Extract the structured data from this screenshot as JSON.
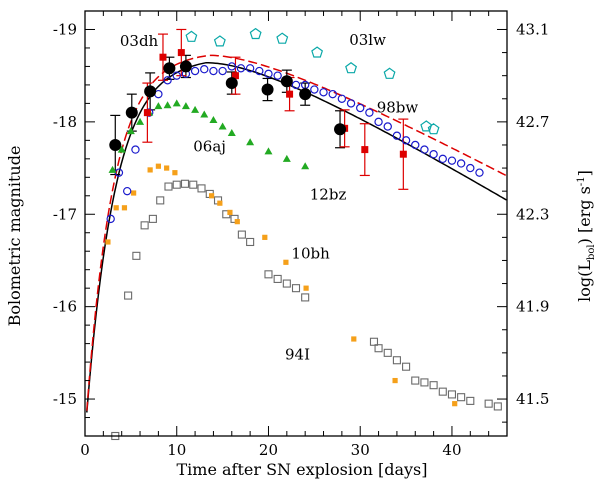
{
  "chart_data": {
    "type": "scatter",
    "xlabel": "Time after SN explosion [days]",
    "ylabel": "Bolometric magnitude",
    "ylabel_right": "log(L",
    "ylabel_right_sub": "bol",
    "ylabel_right_tail": ") [erg s",
    "ylabel_right_sup": "-1",
    "ylabel_right_end": "]",
    "xlim": [
      0,
      46
    ],
    "ylim": [
      -14.6,
      -19.2
    ],
    "x_ticks": [
      "0",
      "10",
      "20",
      "30",
      "40"
    ],
    "x_tick_values": [
      0,
      10,
      20,
      30,
      40
    ],
    "y_ticks": [
      "-15",
      "-16",
      "-17",
      "-18",
      "-19"
    ],
    "y_tick_values": [
      -15,
      -16,
      -17,
      -18,
      -19
    ],
    "y_right_ticks": [
      "41.5",
      "41.9",
      "42.3",
      "42.7",
      "43.1"
    ],
    "y_right_tick_values": [
      41.5,
      41.9,
      42.3,
      42.7,
      43.1
    ],
    "series": [
      {
        "name": "12bz",
        "marker": "filled-circle",
        "color": "#000000",
        "x": [
          3.3,
          5.1,
          7.1,
          9.2,
          11.0,
          16.0,
          19.9,
          22.0,
          24.0,
          27.8
        ],
        "y": [
          -17.75,
          -18.1,
          -18.33,
          -18.58,
          -18.6,
          -18.42,
          -18.35,
          -18.44,
          -18.3,
          -17.92
        ],
        "err": [
          0.32,
          0.2,
          0.2,
          0.12,
          0.12,
          0.12,
          0.12,
          0.12,
          0.12,
          0.2
        ]
      },
      {
        "name": "03dh",
        "marker": "filled-square",
        "color": "#dd0000",
        "x": [
          6.8,
          8.5,
          10.5,
          16.4,
          22.3,
          28.3,
          30.5,
          34.7
        ],
        "y": [
          -18.1,
          -18.7,
          -18.75,
          -18.5,
          -18.3,
          -17.93,
          -17.7,
          -17.65
        ],
        "err": [
          0.32,
          0.25,
          0.25,
          0.2,
          0.18,
          0.2,
          0.28,
          0.38
        ]
      },
      {
        "name": "98bw",
        "marker": "open-circle",
        "color": "#1a1acc",
        "x": [
          2.8,
          3.7,
          4.6,
          5.5,
          7.0,
          8.0,
          9.0,
          10.0,
          11.0,
          12.0,
          13.0,
          14.0,
          15.0,
          16.0,
          17.0,
          18.0,
          19.0,
          20.0,
          21.0,
          22.0,
          23.0,
          24.0,
          25.0,
          26.0,
          27.0,
          28.0,
          29.0,
          30.0,
          31.0,
          32.0,
          33.0,
          34.0,
          35.0,
          36.0,
          37.0,
          38.0,
          39.0,
          40.0,
          41.0,
          42.0,
          43.0
        ],
        "y": [
          -16.95,
          -17.45,
          -17.25,
          -17.7,
          -18.1,
          -18.3,
          -18.45,
          -18.5,
          -18.52,
          -18.55,
          -18.57,
          -18.55,
          -18.55,
          -18.6,
          -18.58,
          -18.58,
          -18.55,
          -18.52,
          -18.5,
          -18.45,
          -18.4,
          -18.4,
          -18.35,
          -18.32,
          -18.3,
          -18.25,
          -18.2,
          -18.15,
          -18.1,
          -18.0,
          -17.95,
          -17.85,
          -17.8,
          -17.75,
          -17.7,
          -17.65,
          -17.6,
          -17.58,
          -17.55,
          -17.5,
          -17.45
        ]
      },
      {
        "name": "03lw",
        "marker": "open-pentagon",
        "color": "#0aa8a8",
        "x": [
          11.6,
          14.7,
          18.6,
          21.5,
          25.3,
          29.0,
          33.2,
          37.2,
          38.0
        ],
        "y": [
          -18.92,
          -18.87,
          -18.95,
          -18.9,
          -18.75,
          -18.58,
          -18.52,
          -17.95,
          -17.92
        ]
      },
      {
        "name": "06aj",
        "marker": "filled-triangle",
        "color": "#22aa22",
        "x": [
          3.0,
          4.0,
          5.0,
          6.0,
          7.0,
          8.0,
          9.0,
          10.0,
          11.0,
          12.0,
          13.0,
          14.0,
          15.0,
          16.0,
          18.0,
          20.0,
          22.0,
          24.0
        ],
        "y": [
          -17.48,
          -17.7,
          -17.9,
          -18.0,
          -18.1,
          -18.17,
          -18.18,
          -18.2,
          -18.17,
          -18.13,
          -18.08,
          -18.02,
          -17.95,
          -17.88,
          -17.78,
          -17.68,
          -17.6,
          -17.52
        ]
      },
      {
        "name": "10bh",
        "marker": "filled-square-small",
        "color": "#f5a01a",
        "x": [
          2.5,
          3.4,
          4.3,
          5.3,
          7.1,
          8.0,
          8.9,
          9.8,
          13.8,
          14.7,
          15.8,
          16.6,
          19.6,
          21.9,
          24.1,
          29.3,
          33.8,
          40.3
        ],
        "y": [
          -16.7,
          -17.07,
          -17.07,
          -17.23,
          -17.48,
          -17.52,
          -17.5,
          -17.45,
          -17.2,
          -17.12,
          -17.02,
          -16.92,
          -16.75,
          -16.48,
          -16.2,
          -15.65,
          -15.2,
          -14.95
        ]
      },
      {
        "name": "94I",
        "marker": "open-square",
        "color": "#6a6a6a",
        "x": [
          3.3,
          4.7,
          5.6,
          6.5,
          7.4,
          8.2,
          9.1,
          10.0,
          10.9,
          11.8,
          12.7,
          13.6,
          14.5,
          15.4,
          16.3,
          17.1,
          18.0,
          20.0,
          21.0,
          22.0,
          23.0,
          24.0,
          31.5,
          32.0,
          33.0,
          34.0,
          35.0,
          36.0,
          37.0,
          38.0,
          39.0,
          40.0,
          41.0,
          42.0,
          44.0,
          45.0
        ],
        "y": [
          -14.6,
          -16.12,
          -16.55,
          -16.88,
          -16.95,
          -17.15,
          -17.3,
          -17.32,
          -17.33,
          -17.32,
          -17.28,
          -17.22,
          -17.15,
          -17.0,
          -16.95,
          -16.78,
          -16.7,
          -16.35,
          -16.3,
          -16.25,
          -16.2,
          -16.1,
          -15.62,
          -15.55,
          -15.5,
          -15.42,
          -15.35,
          -15.2,
          -15.18,
          -15.15,
          -15.08,
          -15.05,
          -15.02,
          -14.98,
          -14.95,
          -14.92
        ]
      }
    ],
    "curves": [
      {
        "name": "12bz model",
        "color": "#000000"
      },
      {
        "name": "03dh model",
        "color": "#dd0000",
        "dash": true
      }
    ],
    "labels": [
      {
        "text": "03dh",
        "color": "#dd0000"
      },
      {
        "text": "03lw",
        "color": "#0aa8a8"
      },
      {
        "text": "98bw",
        "color": "#1a1acc"
      },
      {
        "text": "06aj",
        "color": "#22aa22"
      },
      {
        "text": "12bz",
        "color": "#000000"
      },
      {
        "text": "10bh",
        "color": "#f5a01a"
      },
      {
        "text": "94I",
        "color": "#6a6a6a"
      }
    ]
  }
}
